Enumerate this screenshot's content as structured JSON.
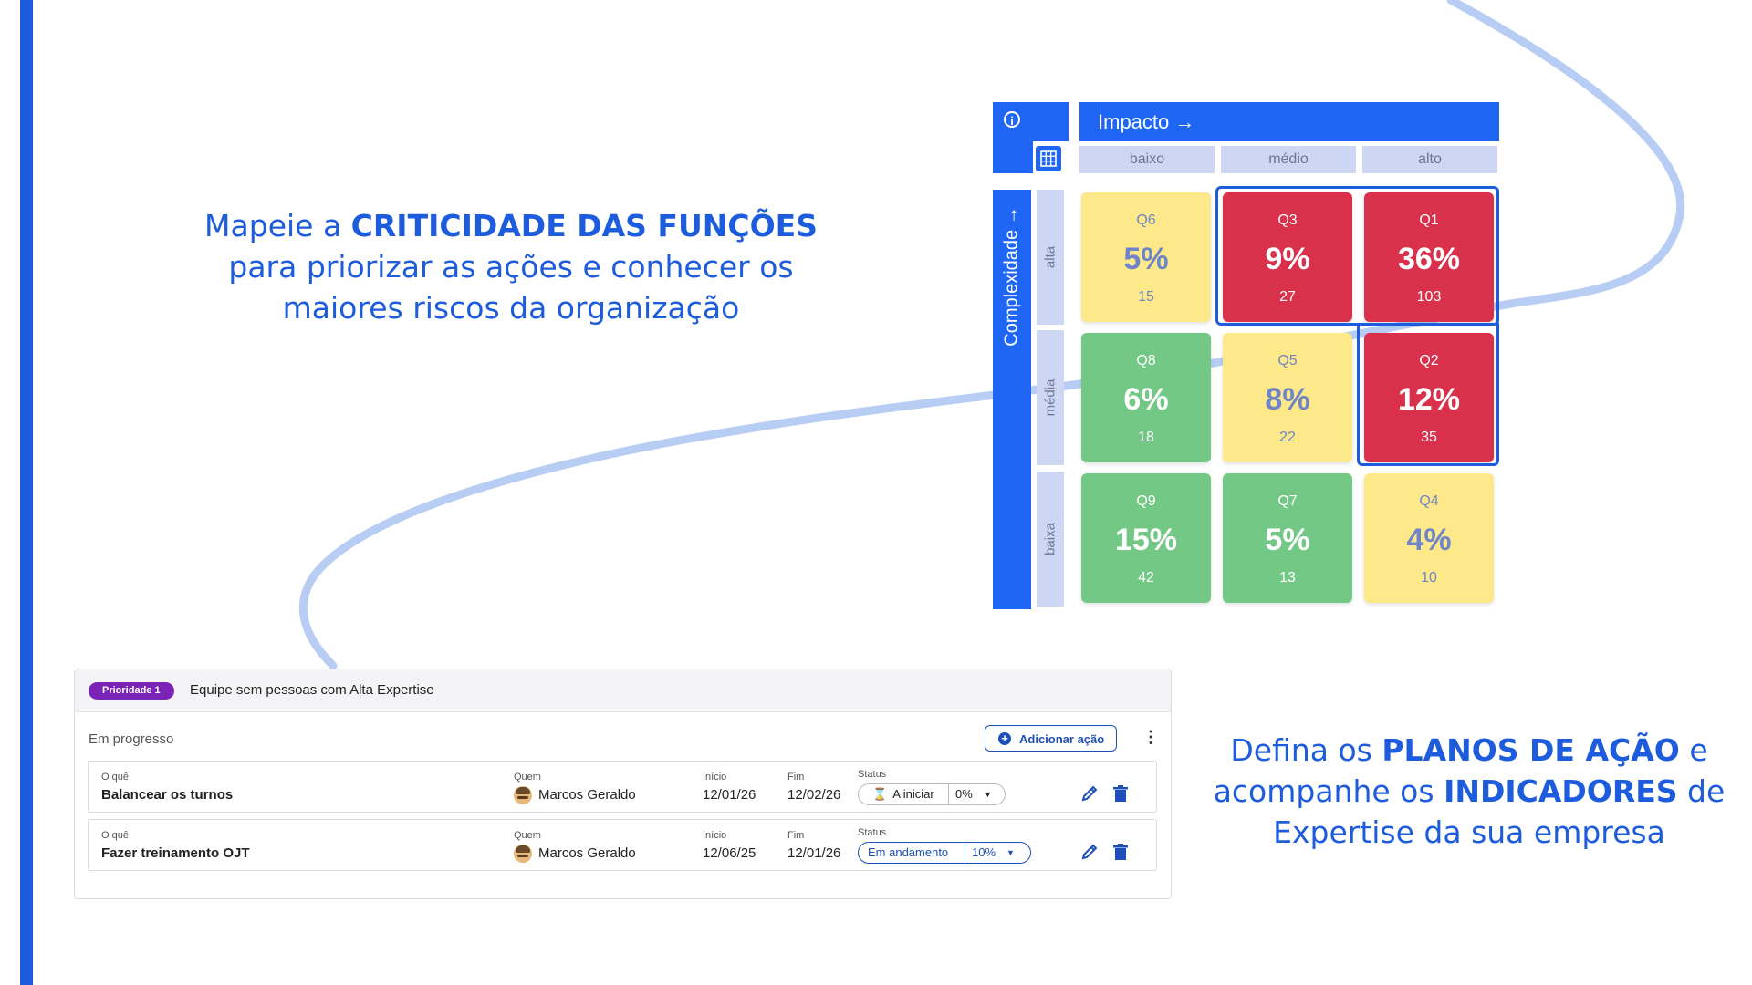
{
  "headline_left": {
    "line1_pre": "Mapeie a ",
    "line1_bold": "CRITICIDADE DAS FUNÇÕES",
    "line2": "para priorizar as ações e conhecer os",
    "line3": "maiores riscos da organização"
  },
  "headline_right": {
    "l1_pre": "Defina os ",
    "l1_bold": "PLANOS DE AÇÃO",
    "l1_post": " e",
    "l2_pre": "acompanhe os ",
    "l2_bold": "INDICADORES",
    "l2_post": " de",
    "l3": "Expertise da sua empresa"
  },
  "matrix": {
    "info_icon": "info-icon",
    "grid_icon": "grid-icon",
    "x_axis_title": "Impacto →",
    "y_axis_title": "Complexidade →",
    "columns": [
      "baixo",
      "médio",
      "alto"
    ],
    "rows": [
      "alta",
      "média",
      "baixa"
    ],
    "cells": [
      {
        "q": "Q6",
        "pct": "5%",
        "n": "15",
        "color": "yellow"
      },
      {
        "q": "Q3",
        "pct": "9%",
        "n": "27",
        "color": "red"
      },
      {
        "q": "Q1",
        "pct": "36%",
        "n": "103",
        "color": "red"
      },
      {
        "q": "Q8",
        "pct": "6%",
        "n": "18",
        "color": "green"
      },
      {
        "q": "Q5",
        "pct": "8%",
        "n": "22",
        "color": "yellow"
      },
      {
        "q": "Q2",
        "pct": "12%",
        "n": "35",
        "color": "red"
      },
      {
        "q": "Q9",
        "pct": "15%",
        "n": "42",
        "color": "green"
      },
      {
        "q": "Q7",
        "pct": "5%",
        "n": "13",
        "color": "green"
      },
      {
        "q": "Q4",
        "pct": "4%",
        "n": "10",
        "color": "yellow"
      }
    ],
    "colors": {
      "yellow": "#fde98a",
      "red": "#d9304b",
      "green": "#73c885",
      "accent": "#1f66f5"
    }
  },
  "plan": {
    "priority_badge": "Prioridade 1",
    "title": "Equipe sem pessoas com Alta Expertise",
    "section": "Em progresso",
    "add_button": "Adicionar ação",
    "labels": {
      "what": "O quê",
      "who": "Quem",
      "start": "Início",
      "end": "Fim",
      "status": "Status"
    },
    "rows": [
      {
        "what": "Balancear os turnos",
        "who": "Marcos Geraldo",
        "start": "12/01/26",
        "end": "12/02/26",
        "status": "A iniciar",
        "progress": "0%"
      },
      {
        "what": "Fazer treinamento OJT",
        "who": "Marcos Geraldo",
        "start": "12/06/25",
        "end": "12/01/26",
        "status": "Em andamento",
        "progress": "10%"
      }
    ]
  }
}
